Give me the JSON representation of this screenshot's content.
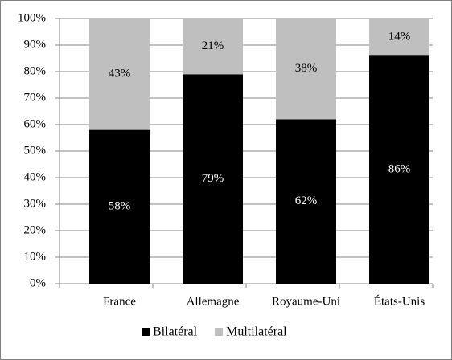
{
  "chart_data": {
    "type": "stacked-bar",
    "categories": [
      "France",
      "Allemagne",
      "Royaume-Uni",
      "États-Unis"
    ],
    "series": [
      {
        "name": "Bilatéral",
        "color": "#000000",
        "values": [
          58,
          79,
          62,
          86
        ],
        "value_labels": [
          "58%",
          "79%",
          "62%",
          "86%"
        ]
      },
      {
        "name": "Multilatéral",
        "color": "#bfbfbf",
        "values": [
          43,
          21,
          38,
          14
        ],
        "value_labels": [
          "43%",
          "21%",
          "38%",
          "14%"
        ]
      }
    ],
    "ylim": [
      0,
      100
    ],
    "yticks": [
      {
        "value": 0,
        "label": "0%"
      },
      {
        "value": 10,
        "label": "10%"
      },
      {
        "value": 20,
        "label": "20%"
      },
      {
        "value": 30,
        "label": "30%"
      },
      {
        "value": 40,
        "label": "40%"
      },
      {
        "value": 50,
        "label": "50%"
      },
      {
        "value": 60,
        "label": "60%"
      },
      {
        "value": 70,
        "label": "70%"
      },
      {
        "value": 80,
        "label": "80%"
      },
      {
        "value": 90,
        "label": "90%"
      },
      {
        "value": 100,
        "label": "100%"
      }
    ],
    "grid": true,
    "legend": "bottom"
  }
}
